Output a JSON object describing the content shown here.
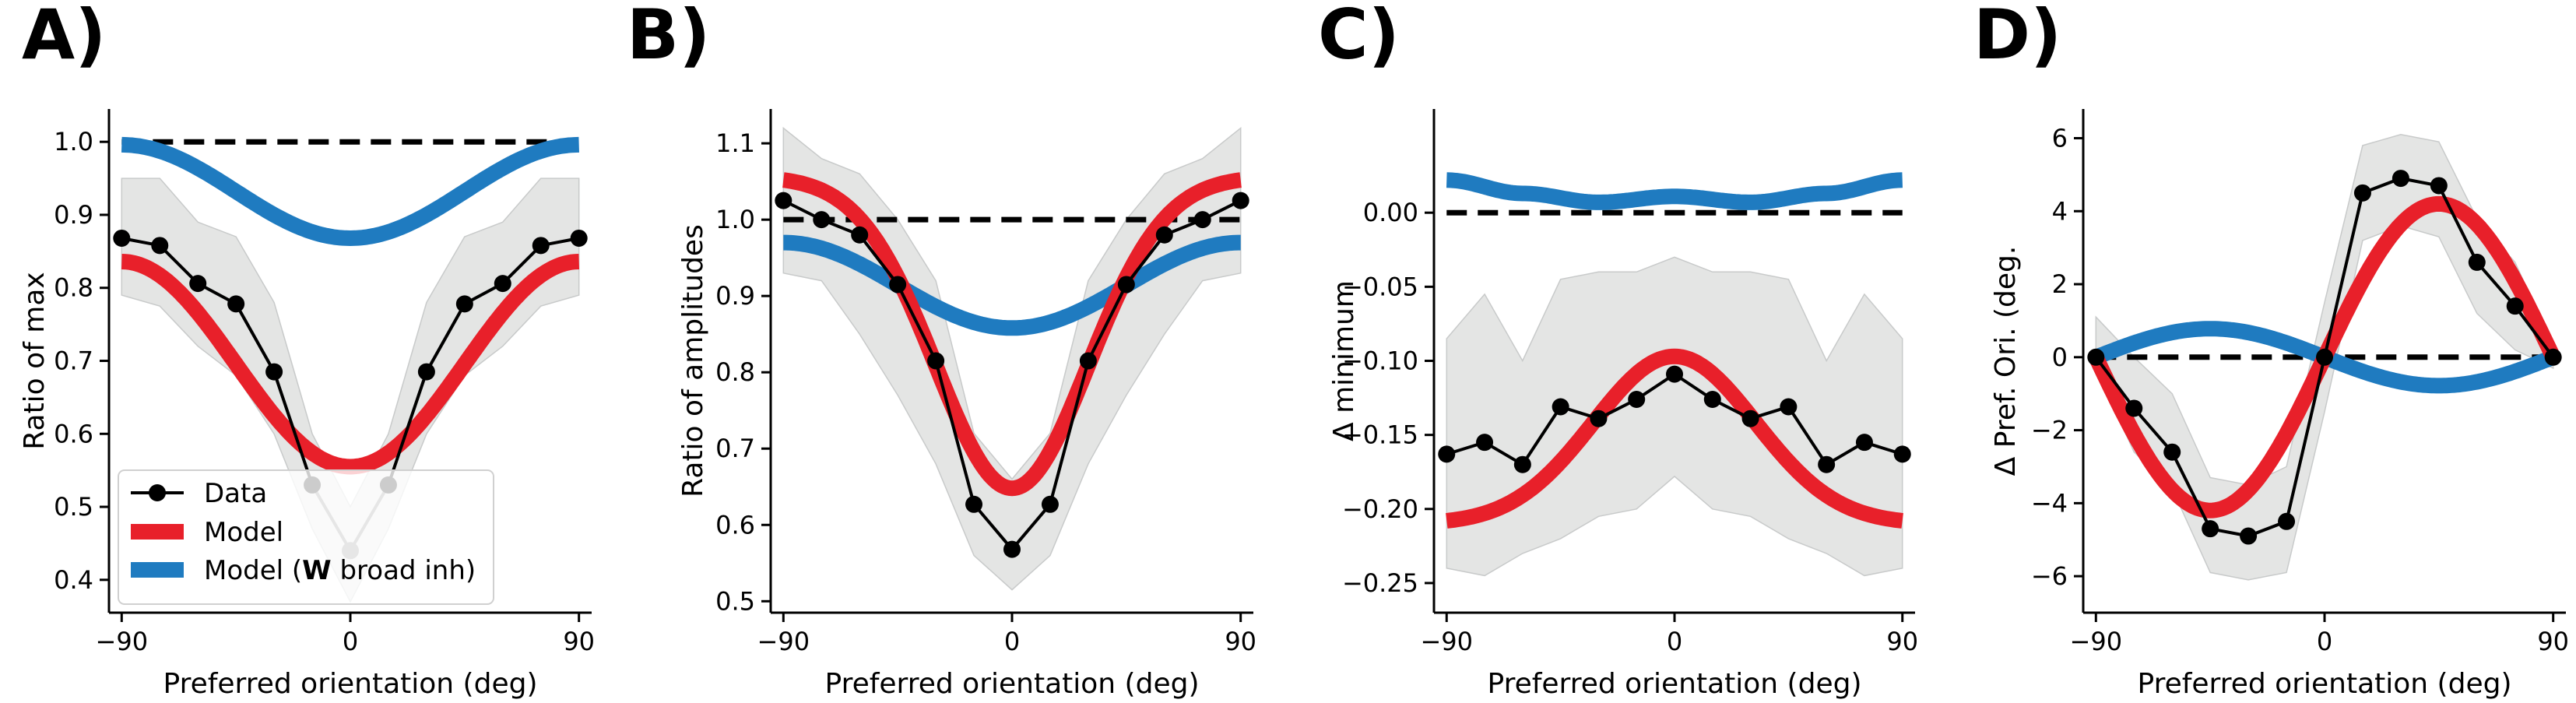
{
  "colors": {
    "data": "#000000",
    "model": "#e8202a",
    "model_broad": "#1f7bc0",
    "band": "#dcdedd",
    "reference": "#000000",
    "inset": "#808080"
  },
  "legend": {
    "items": [
      {
        "label_prefix": "Data",
        "label_bold": "",
        "label_suffix": "",
        "style": "data"
      },
      {
        "label_prefix": "Model",
        "label_bold": "",
        "label_suffix": "",
        "style": "model"
      },
      {
        "label_prefix": "Model (",
        "label_bold": "W",
        "label_suffix": " broad inh)",
        "style": "model_broad"
      }
    ]
  },
  "chart_data": [
    {
      "panel": "A)",
      "type": "line",
      "xlabel": "Preferred orientation (deg)",
      "ylabel": "Ratio of max",
      "xlim": [
        -95,
        95
      ],
      "ylim": [
        0.355,
        1.045
      ],
      "xticks": [
        -90,
        0,
        90
      ],
      "xtick_labels": [
        "−90",
        "0",
        "90"
      ],
      "yticks": [
        0.4,
        0.5,
        0.6,
        0.7,
        0.8,
        0.9,
        1.0
      ],
      "ytick_labels": [
        "0.4",
        "0.5",
        "0.6",
        "0.7",
        "0.8",
        "0.9",
        "1.0"
      ],
      "reference_y": 1.0,
      "data": {
        "x": [
          -90,
          -75,
          -60,
          -45,
          -30,
          -15,
          15,
          30,
          45,
          60,
          75,
          90
        ],
        "y": [
          0.868,
          0.858,
          0.806,
          0.778,
          0.685,
          0.53,
          0.53,
          0.685,
          0.778,
          0.806,
          0.858,
          0.868
        ]
      },
      "data_inset": {
        "x": [
          -15,
          0,
          15
        ],
        "y": [
          0.53,
          0.44,
          0.53
        ]
      },
      "band": {
        "x": [
          -90,
          -75,
          -60,
          -45,
          -30,
          -15,
          0,
          15,
          30,
          45,
          60,
          75,
          90
        ],
        "lower": [
          0.79,
          0.775,
          0.72,
          0.68,
          0.6,
          0.47,
          0.37,
          0.47,
          0.6,
          0.68,
          0.72,
          0.775,
          0.79
        ],
        "upper": [
          0.95,
          0.95,
          0.89,
          0.87,
          0.78,
          0.6,
          0.5,
          0.6,
          0.78,
          0.87,
          0.89,
          0.95,
          0.95
        ]
      },
      "model": {
        "kind": "cosine",
        "at_edges": 0.836,
        "at_center": 0.555
      },
      "model_broad": {
        "kind": "cosine",
        "at_edges": 0.996,
        "at_center": 0.868
      },
      "legend_location": "lower-left"
    },
    {
      "panel": "B)",
      "type": "line",
      "xlabel": "Preferred orientation (deg)",
      "ylabel": "Ratio of amplitudes",
      "xlim": [
        -95,
        95
      ],
      "ylim": [
        0.485,
        1.145
      ],
      "xticks": [
        -90,
        0,
        90
      ],
      "xtick_labels": [
        "−90",
        "0",
        "90"
      ],
      "yticks": [
        0.5,
        0.6,
        0.7,
        0.8,
        0.9,
        1.0,
        1.1
      ],
      "ytick_labels": [
        "0.5",
        "0.6",
        "0.7",
        "0.8",
        "0.9",
        "1.0",
        "1.1"
      ],
      "reference_y": 1.0,
      "data": {
        "x": [
          -90,
          -75,
          -60,
          -45,
          -30,
          -15,
          0,
          15,
          30,
          45,
          60,
          75,
          90
        ],
        "y": [
          1.025,
          1.0,
          0.98,
          0.915,
          0.815,
          0.627,
          0.568,
          0.627,
          0.815,
          0.915,
          0.98,
          1.0,
          1.025
        ]
      },
      "band": {
        "x": [
          -90,
          -75,
          -60,
          -45,
          -30,
          -15,
          0,
          15,
          30,
          45,
          60,
          75,
          90
        ],
        "lower": [
          0.93,
          0.92,
          0.85,
          0.77,
          0.68,
          0.56,
          0.515,
          0.56,
          0.68,
          0.77,
          0.85,
          0.92,
          0.93
        ],
        "upper": [
          1.12,
          1.08,
          1.06,
          1.0,
          0.92,
          0.72,
          0.66,
          0.72,
          0.92,
          1.0,
          1.06,
          1.08,
          1.12
        ]
      },
      "model": {
        "kind": "gaussian",
        "at_edges": 1.052,
        "at_center": 0.648,
        "sigma": 30
      },
      "model_broad": {
        "kind": "cosine",
        "at_edges": 0.97,
        "at_center": 0.858
      }
    },
    {
      "panel": "C)",
      "type": "line",
      "xlabel": "Preferred orientation (deg)",
      "ylabel": "Δ minimum",
      "xlim": [
        -95,
        95
      ],
      "ylim": [
        -0.27,
        0.07
      ],
      "xticks": [
        -90,
        0,
        90
      ],
      "xtick_labels": [
        "−90",
        "0",
        "90"
      ],
      "yticks": [
        -0.25,
        -0.2,
        -0.15,
        -0.1,
        -0.05,
        0.0
      ],
      "ytick_labels": [
        "−0.25",
        "−0.20",
        "−0.15",
        "−0.10",
        "−0.05",
        "0.00"
      ],
      "reference_y": 0.0,
      "data": {
        "x": [
          -90,
          -75,
          -60,
          -45,
          -30,
          -15,
          0,
          15,
          30,
          45,
          60,
          75,
          90
        ],
        "y": [
          -0.163,
          -0.155,
          -0.17,
          -0.131,
          -0.139,
          -0.126,
          -0.109,
          -0.126,
          -0.139,
          -0.131,
          -0.17,
          -0.155,
          -0.163
        ]
      },
      "band": {
        "x": [
          -90,
          -75,
          -60,
          -45,
          -30,
          -15,
          0,
          15,
          30,
          45,
          60,
          75,
          90
        ],
        "lower": [
          -0.24,
          -0.245,
          -0.23,
          -0.22,
          -0.205,
          -0.2,
          -0.178,
          -0.2,
          -0.205,
          -0.22,
          -0.23,
          -0.245,
          -0.24
        ],
        "upper": [
          -0.085,
          -0.055,
          -0.1,
          -0.045,
          -0.04,
          -0.04,
          -0.03,
          -0.04,
          -0.04,
          -0.045,
          -0.1,
          -0.055,
          -0.085
        ]
      },
      "model": {
        "kind": "gaussian",
        "at_edges": -0.208,
        "at_center": -0.097,
        "sigma": 32
      },
      "model_broad": {
        "kind": "points",
        "x": [
          -90,
          -60,
          -30,
          0,
          30,
          60,
          90
        ],
        "y": [
          0.022,
          0.013,
          0.007,
          0.011,
          0.007,
          0.013,
          0.022
        ]
      }
    },
    {
      "panel": "D)",
      "type": "line",
      "xlabel": "Preferred orientation (deg)",
      "ylabel": "Δ Pref. Ori. (deg.",
      "xlim": [
        -95,
        95
      ],
      "ylim": [
        -7.0,
        6.8
      ],
      "xticks": [
        -90,
        0,
        90
      ],
      "xtick_labels": [
        "−90",
        "0",
        "90"
      ],
      "yticks": [
        -6,
        -4,
        -2,
        0,
        2,
        4,
        6
      ],
      "ytick_labels": [
        "−6",
        "−4",
        "−2",
        "0",
        "2",
        "4",
        "6"
      ],
      "reference_y": 0,
      "data": {
        "x": [
          -90,
          -75,
          -60,
          -45,
          -30,
          -15,
          0,
          15,
          30,
          45,
          60,
          75,
          90
        ],
        "y": [
          0.0,
          -1.4,
          -2.6,
          -4.7,
          -4.9,
          -4.5,
          0.0,
          4.5,
          4.9,
          4.7,
          2.6,
          1.4,
          0.0
        ]
      },
      "band": {
        "x": [
          -90,
          -75,
          -60,
          -45,
          -30,
          -15,
          0,
          15,
          30,
          45,
          60,
          75,
          90
        ],
        "lower": [
          -0.3,
          -2.6,
          -3.6,
          -5.9,
          -6.1,
          -5.9,
          -1.5,
          3.2,
          3.6,
          3.3,
          1.2,
          0.2,
          -0.3
        ],
        "upper": [
          1.1,
          0.0,
          -1.0,
          -3.3,
          -3.5,
          -3.0,
          1.5,
          5.8,
          6.1,
          5.9,
          3.8,
          2.6,
          0.3
        ]
      },
      "model": {
        "kind": "sine",
        "amplitude": 4.2,
        "sign": 1
      },
      "model_broad": {
        "kind": "sine",
        "amplitude": 0.78,
        "sign": -1
      }
    }
  ]
}
